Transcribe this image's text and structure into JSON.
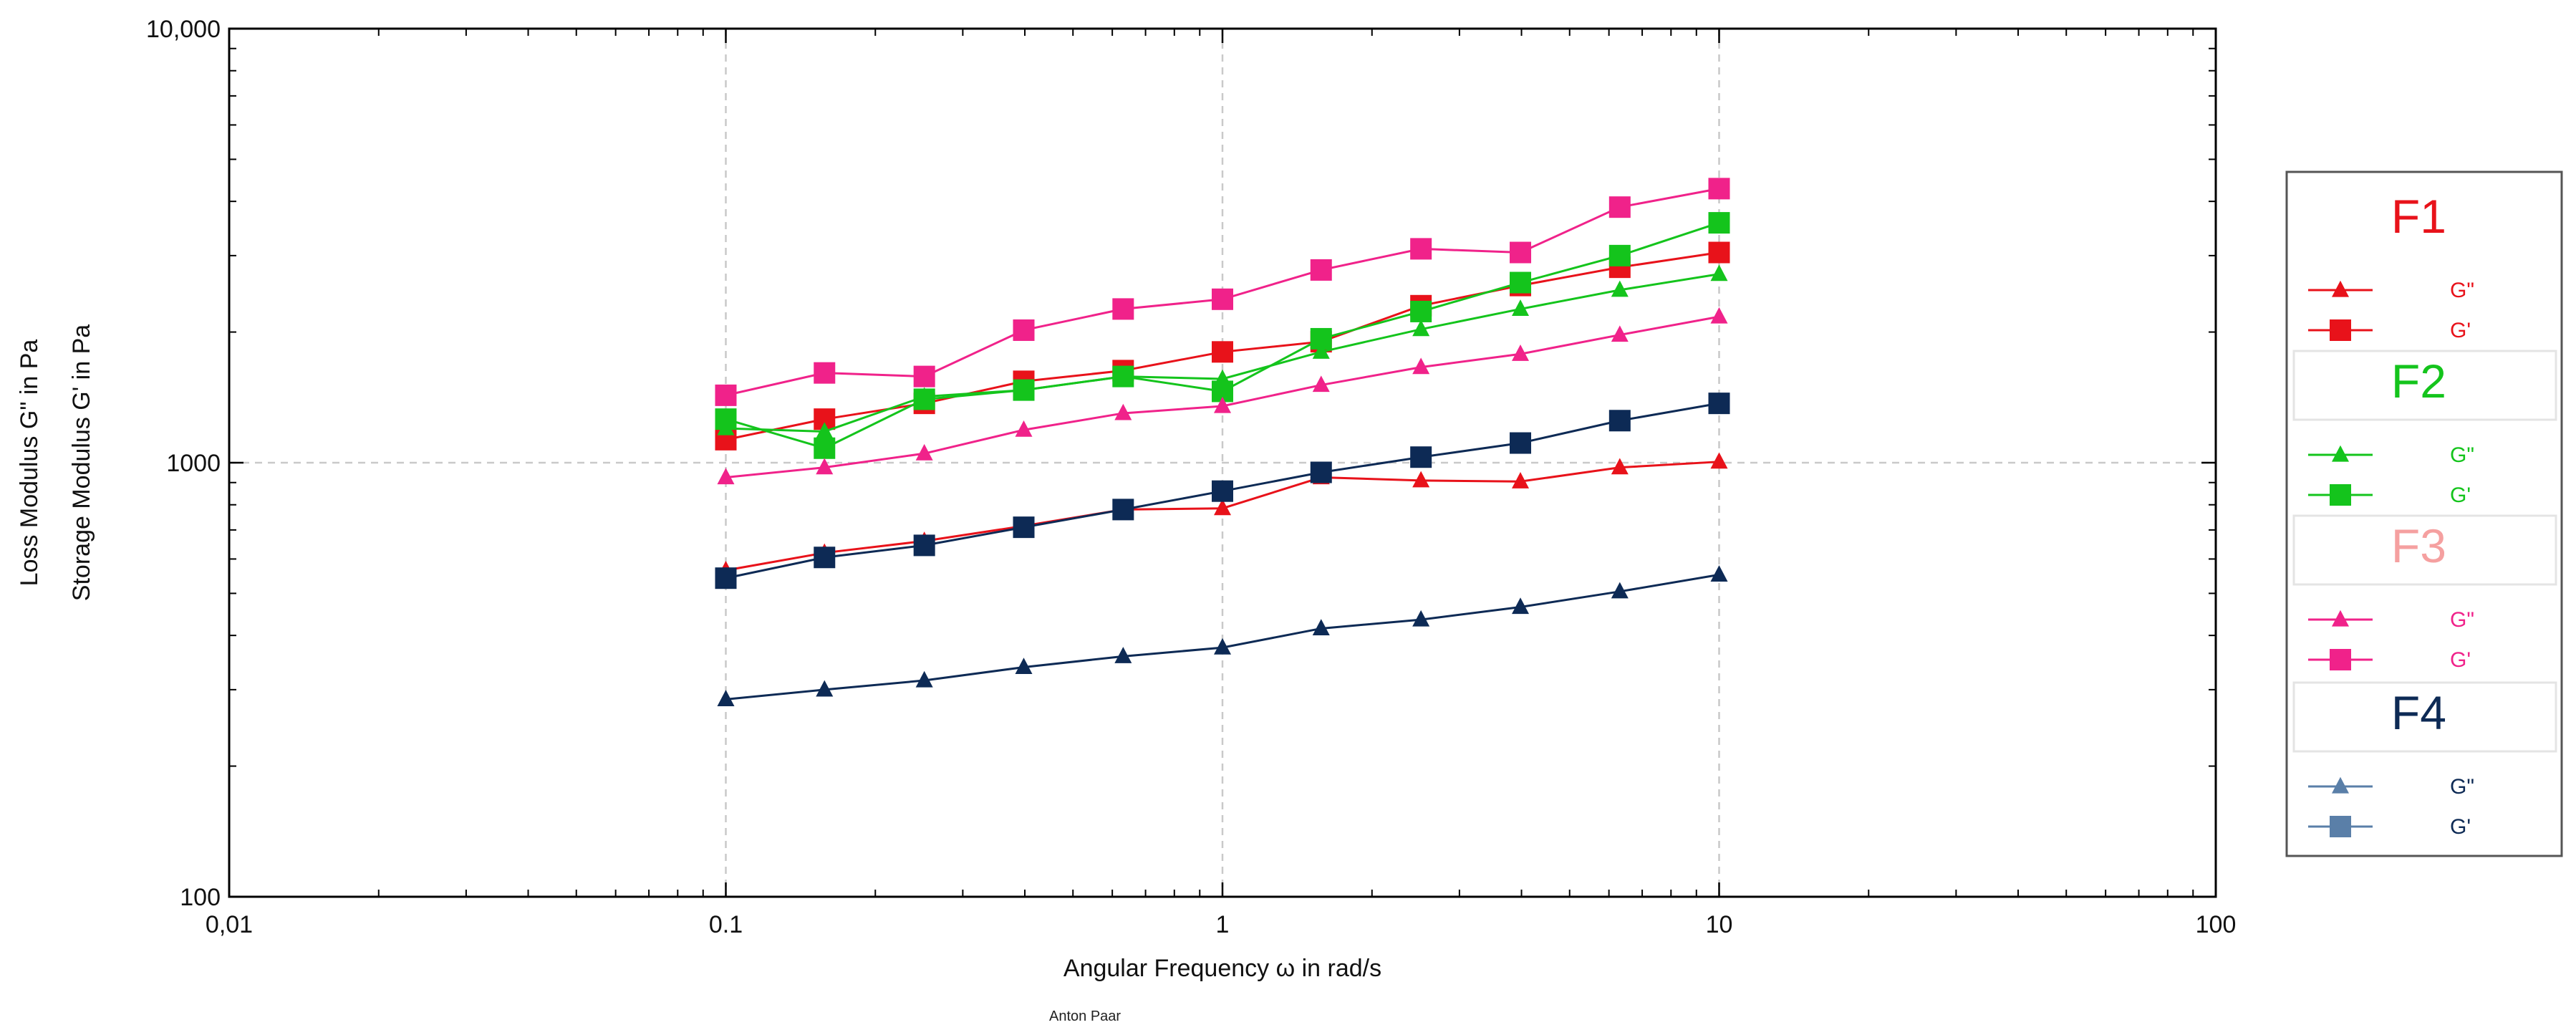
{
  "chart_data": {
    "type": "line",
    "x_scale": "log",
    "y_scale": "log",
    "xlim": [
      0.01,
      100
    ],
    "ylim": [
      100,
      10000
    ],
    "x_ticks": [
      {
        "value": 0.01,
        "label": "0,01"
      },
      {
        "value": 0.1,
        "label": "0.1"
      },
      {
        "value": 1,
        "label": "1"
      },
      {
        "value": 10,
        "label": "10"
      },
      {
        "value": 100,
        "label": "100"
      }
    ],
    "y_ticks": [
      {
        "value": 100,
        "label": "100"
      },
      {
        "value": 1000,
        "label": "1000"
      },
      {
        "value": 10000,
        "label": "10,000"
      }
    ],
    "xlabel": "Angular Frequency ω  in rad/s",
    "ylabel_line1": "Loss Modulus G\"  in Pa",
    "ylabel_line2": "Storage Modulus G'  in Pa",
    "grid": true,
    "credit": "Anton Paar",
    "x": [
      0.1,
      0.158,
      0.251,
      0.398,
      0.631,
      1,
      1.58,
      2.51,
      3.98,
      6.31,
      10
    ],
    "series": [
      {
        "name": "F1 G\"",
        "group": "F1",
        "quantity": "G\"",
        "marker": "triangle",
        "color": "#e8121a",
        "values": [
          565,
          620,
          660,
          715,
          780,
          785,
          925,
          910,
          905,
          975,
          1005
        ]
      },
      {
        "name": "F1 G'",
        "group": "F1",
        "quantity": "G'",
        "marker": "square",
        "color": "#e8121a",
        "values": [
          1130,
          1260,
          1370,
          1540,
          1630,
          1800,
          1900,
          2300,
          2560,
          2820,
          3050
        ]
      },
      {
        "name": "F2 G\"",
        "group": "F2",
        "quantity": "G\"",
        "marker": "triangle",
        "color": "#14c41c",
        "values": [
          1200,
          1180,
          1420,
          1470,
          1580,
          1560,
          1800,
          2030,
          2260,
          2500,
          2720
        ]
      },
      {
        "name": "F2 G'",
        "group": "F2",
        "quantity": "G'",
        "marker": "square",
        "color": "#14c41c",
        "values": [
          1260,
          1080,
          1400,
          1470,
          1580,
          1460,
          1930,
          2230,
          2600,
          3000,
          3570
        ]
      },
      {
        "name": "F3 G\"",
        "group": "F3",
        "quantity": "G\"",
        "marker": "triangle",
        "color": "#f0228a",
        "values": [
          925,
          975,
          1050,
          1190,
          1300,
          1350,
          1510,
          1660,
          1780,
          1970,
          2170
        ]
      },
      {
        "name": "F3 G'",
        "group": "F3",
        "quantity": "G'",
        "marker": "square",
        "color": "#f0228a",
        "values": [
          1430,
          1610,
          1580,
          2020,
          2260,
          2380,
          2780,
          3110,
          3050,
          3880,
          4280
        ]
      },
      {
        "name": "F4 G\"",
        "group": "F4",
        "quantity": "G\"",
        "marker": "triangle",
        "color": "#0d2a55",
        "values": [
          285,
          300,
          315,
          338,
          358,
          375,
          415,
          435,
          465,
          505,
          552
        ]
      },
      {
        "name": "F4 G'",
        "group": "F4",
        "quantity": "G'",
        "marker": "square",
        "color": "#0d2a55",
        "values": [
          542,
          605,
          645,
          710,
          780,
          860,
          950,
          1030,
          1110,
          1250,
          1370
        ]
      }
    ]
  },
  "legend": {
    "placement": "right",
    "groups": [
      {
        "title": "F1",
        "title_color": "#e8121a",
        "line_color": "#e8121a",
        "text_color": "#e8121a",
        "entries": [
          {
            "label": "G\"",
            "marker": "triangle"
          },
          {
            "label": "G'",
            "marker": "square"
          }
        ]
      },
      {
        "title": "F2",
        "title_color": "#14c41c",
        "line_color": "#14c41c",
        "text_color": "#14c41c",
        "entries": [
          {
            "label": "G\"",
            "marker": "triangle"
          },
          {
            "label": "G'",
            "marker": "square"
          }
        ]
      },
      {
        "title": "F3",
        "title_color": "#f5a0a0",
        "line_color": "#f0228a",
        "text_color": "#f0228a",
        "entries": [
          {
            "label": "G\"",
            "marker": "triangle"
          },
          {
            "label": "G'",
            "marker": "square"
          }
        ]
      },
      {
        "title": "F4",
        "title_color": "#0d2a55",
        "line_color": "#5a7fa8",
        "text_color": "#0d2a55",
        "entries": [
          {
            "label": "G\"",
            "marker": "triangle"
          },
          {
            "label": "G'",
            "marker": "square"
          }
        ]
      }
    ]
  }
}
